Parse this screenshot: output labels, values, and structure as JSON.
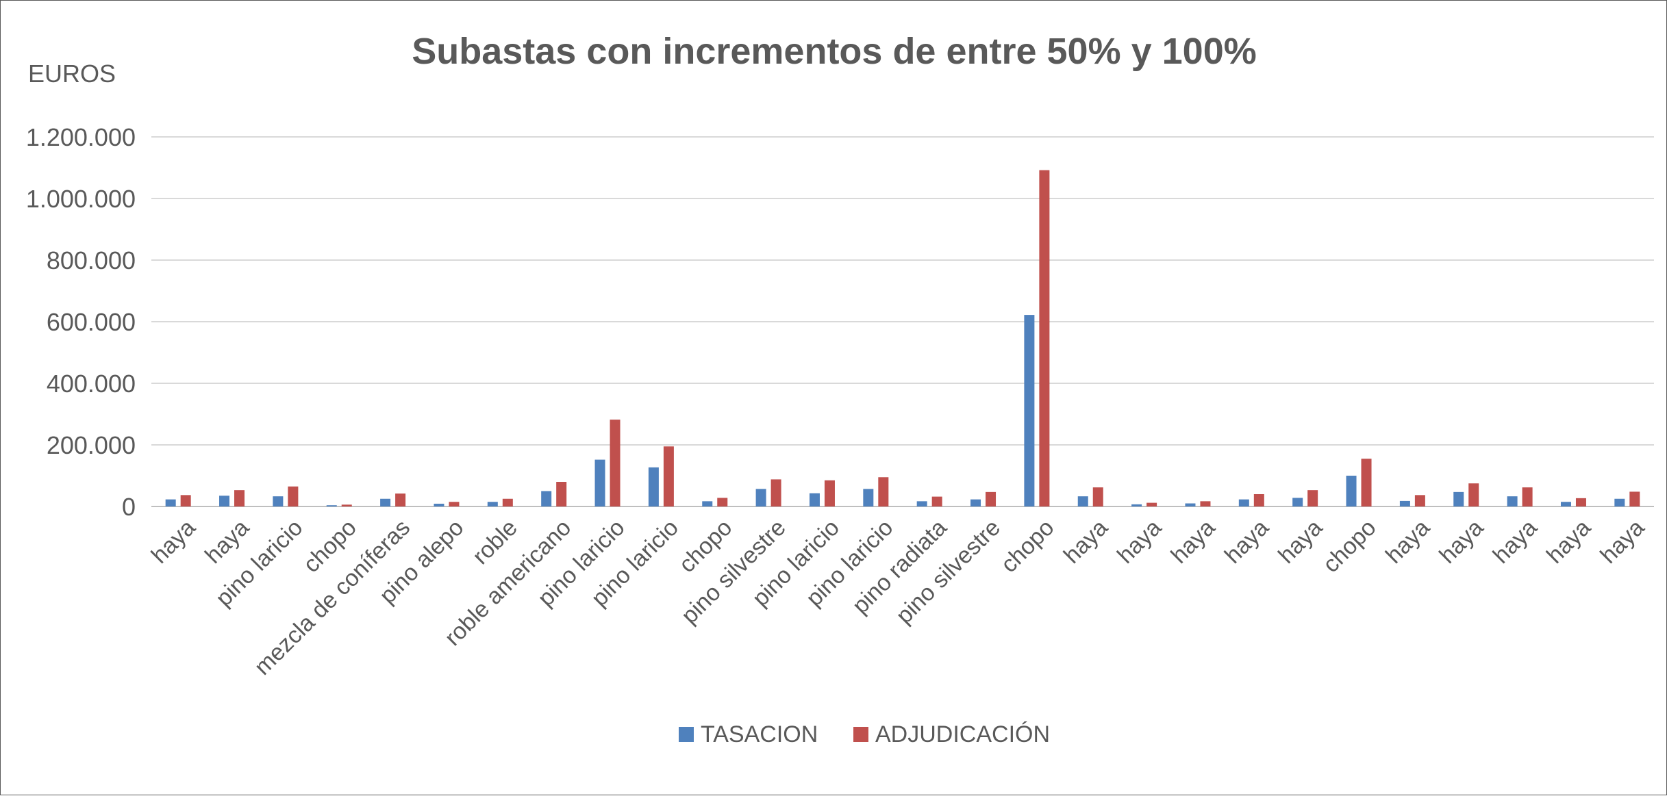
{
  "chart_data": {
    "type": "bar",
    "title": "Subastas con incrementos de entre 50% y 100%",
    "ylabel": "EUROS",
    "xlabel": "",
    "ylim": [
      0,
      1200000
    ],
    "yticks": [
      0,
      200000,
      400000,
      600000,
      800000,
      1000000,
      1200000
    ],
    "ytick_labels": [
      "0",
      "200.000",
      "400.000",
      "600.000",
      "800.000",
      "1.000.000",
      "1.200.000"
    ],
    "grid": true,
    "legend_position": "bottom",
    "categories": [
      "haya",
      "haya",
      "pino laricio",
      "chopo",
      "mezcla de coníferas",
      "pino alepo",
      "roble",
      "roble americano",
      "pino laricio",
      "pino laricio",
      "chopo",
      "pino silvestre",
      "pino laricio",
      "pino laricio",
      "pino radiata",
      "pino silvestre",
      "chopo",
      "haya",
      "haya",
      "haya",
      "haya",
      "haya",
      "chopo",
      "haya",
      "haya",
      "haya",
      "haya",
      "haya"
    ],
    "series": [
      {
        "name": "TASACION",
        "color": "#4f81bd",
        "values": [
          23000,
          35000,
          33000,
          4000,
          25000,
          9000,
          15000,
          50000,
          152000,
          127000,
          17000,
          57000,
          43000,
          57000,
          17000,
          23000,
          622000,
          33000,
          7000,
          10000,
          23000,
          28000,
          100000,
          18000,
          47000,
          33000,
          15000,
          25000
        ]
      },
      {
        "name": "ADJUDICACIÓN",
        "color": "#c0504d",
        "values": [
          37000,
          53000,
          65000,
          6000,
          42000,
          15000,
          25000,
          80000,
          282000,
          195000,
          28000,
          88000,
          85000,
          95000,
          32000,
          47000,
          1092000,
          62000,
          12000,
          17000,
          40000,
          53000,
          155000,
          37000,
          75000,
          62000,
          27000,
          48000
        ]
      }
    ]
  }
}
